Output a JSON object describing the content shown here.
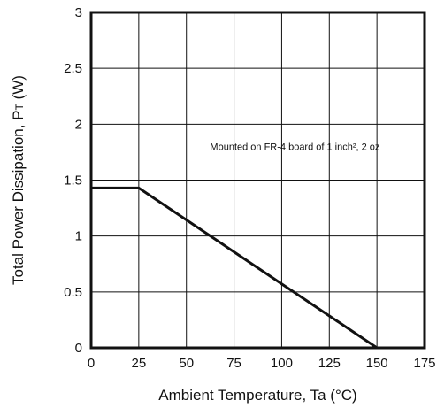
{
  "chart_data": {
    "type": "line",
    "xlabel": "Ambient Temperature, Ta (°C)",
    "ylabel_main": "Total Power Dissipation, P",
    "ylabel_sub": "T",
    "ylabel_unit": " (W)",
    "xlim": [
      0,
      175
    ],
    "ylim": [
      0,
      3
    ],
    "x_ticks": [
      0,
      25,
      50,
      75,
      100,
      125,
      150,
      175
    ],
    "x_tick_labels": [
      "0",
      "25",
      "50",
      "75",
      "100",
      "125",
      "150",
      "175"
    ],
    "y_ticks": [
      0,
      0.5,
      1,
      1.5,
      2,
      2.5,
      3
    ],
    "y_tick_labels": [
      "0",
      "0.5",
      "1",
      "1.5",
      "2",
      "2.5",
      "3"
    ],
    "grid": true,
    "series": [
      {
        "x": [
          0,
          25,
          150
        ],
        "y": [
          1.43,
          1.43,
          0
        ]
      }
    ],
    "annotation": "Mounted on FR-4 board of 1 inch², 2 oz",
    "annotation_position": [
      100,
      1.8
    ],
    "colors": {
      "line": "#111111",
      "grid": "#111111",
      "background": "#ffffff"
    }
  }
}
